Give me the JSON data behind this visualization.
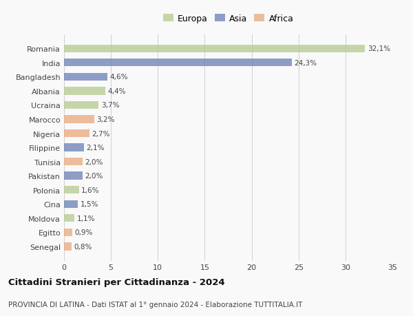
{
  "countries": [
    "Romania",
    "India",
    "Bangladesh",
    "Albania",
    "Ucraina",
    "Marocco",
    "Nigeria",
    "Filippine",
    "Tunisia",
    "Pakistan",
    "Polonia",
    "Cina",
    "Moldova",
    "Egitto",
    "Senegal"
  ],
  "values": [
    32.1,
    24.3,
    4.6,
    4.4,
    3.7,
    3.2,
    2.7,
    2.1,
    2.0,
    2.0,
    1.6,
    1.5,
    1.1,
    0.9,
    0.8
  ],
  "labels": [
    "32,1%",
    "24,3%",
    "4,6%",
    "4,4%",
    "3,7%",
    "3,2%",
    "2,7%",
    "2,1%",
    "2,0%",
    "2,0%",
    "1,6%",
    "1,5%",
    "1,1%",
    "0,9%",
    "0,8%"
  ],
  "colors": [
    "#b5c98e",
    "#6b7fb5",
    "#6b7fb5",
    "#b5c98e",
    "#b5c98e",
    "#e8a87c",
    "#e8a87c",
    "#6b7fb5",
    "#e8a87c",
    "#6b7fb5",
    "#b5c98e",
    "#6b7fb5",
    "#b5c98e",
    "#e8a87c",
    "#e8a87c"
  ],
  "legend_labels": [
    "Europa",
    "Asia",
    "Africa"
  ],
  "legend_colors": [
    "#b5c98e",
    "#6b7fb5",
    "#e8a87c"
  ],
  "title": "Cittadini Stranieri per Cittadinanza - 2024",
  "subtitle": "PROVINCIA DI LATINA - Dati ISTAT al 1° gennaio 2024 - Elaborazione TUTTITALIA.IT",
  "xlim": [
    0,
    35
  ],
  "xticks": [
    0,
    5,
    10,
    15,
    20,
    25,
    30,
    35
  ],
  "background_color": "#f9f9f9",
  "grid_color": "#d0d0d0",
  "bar_alpha": 0.75,
  "bar_height": 0.55
}
